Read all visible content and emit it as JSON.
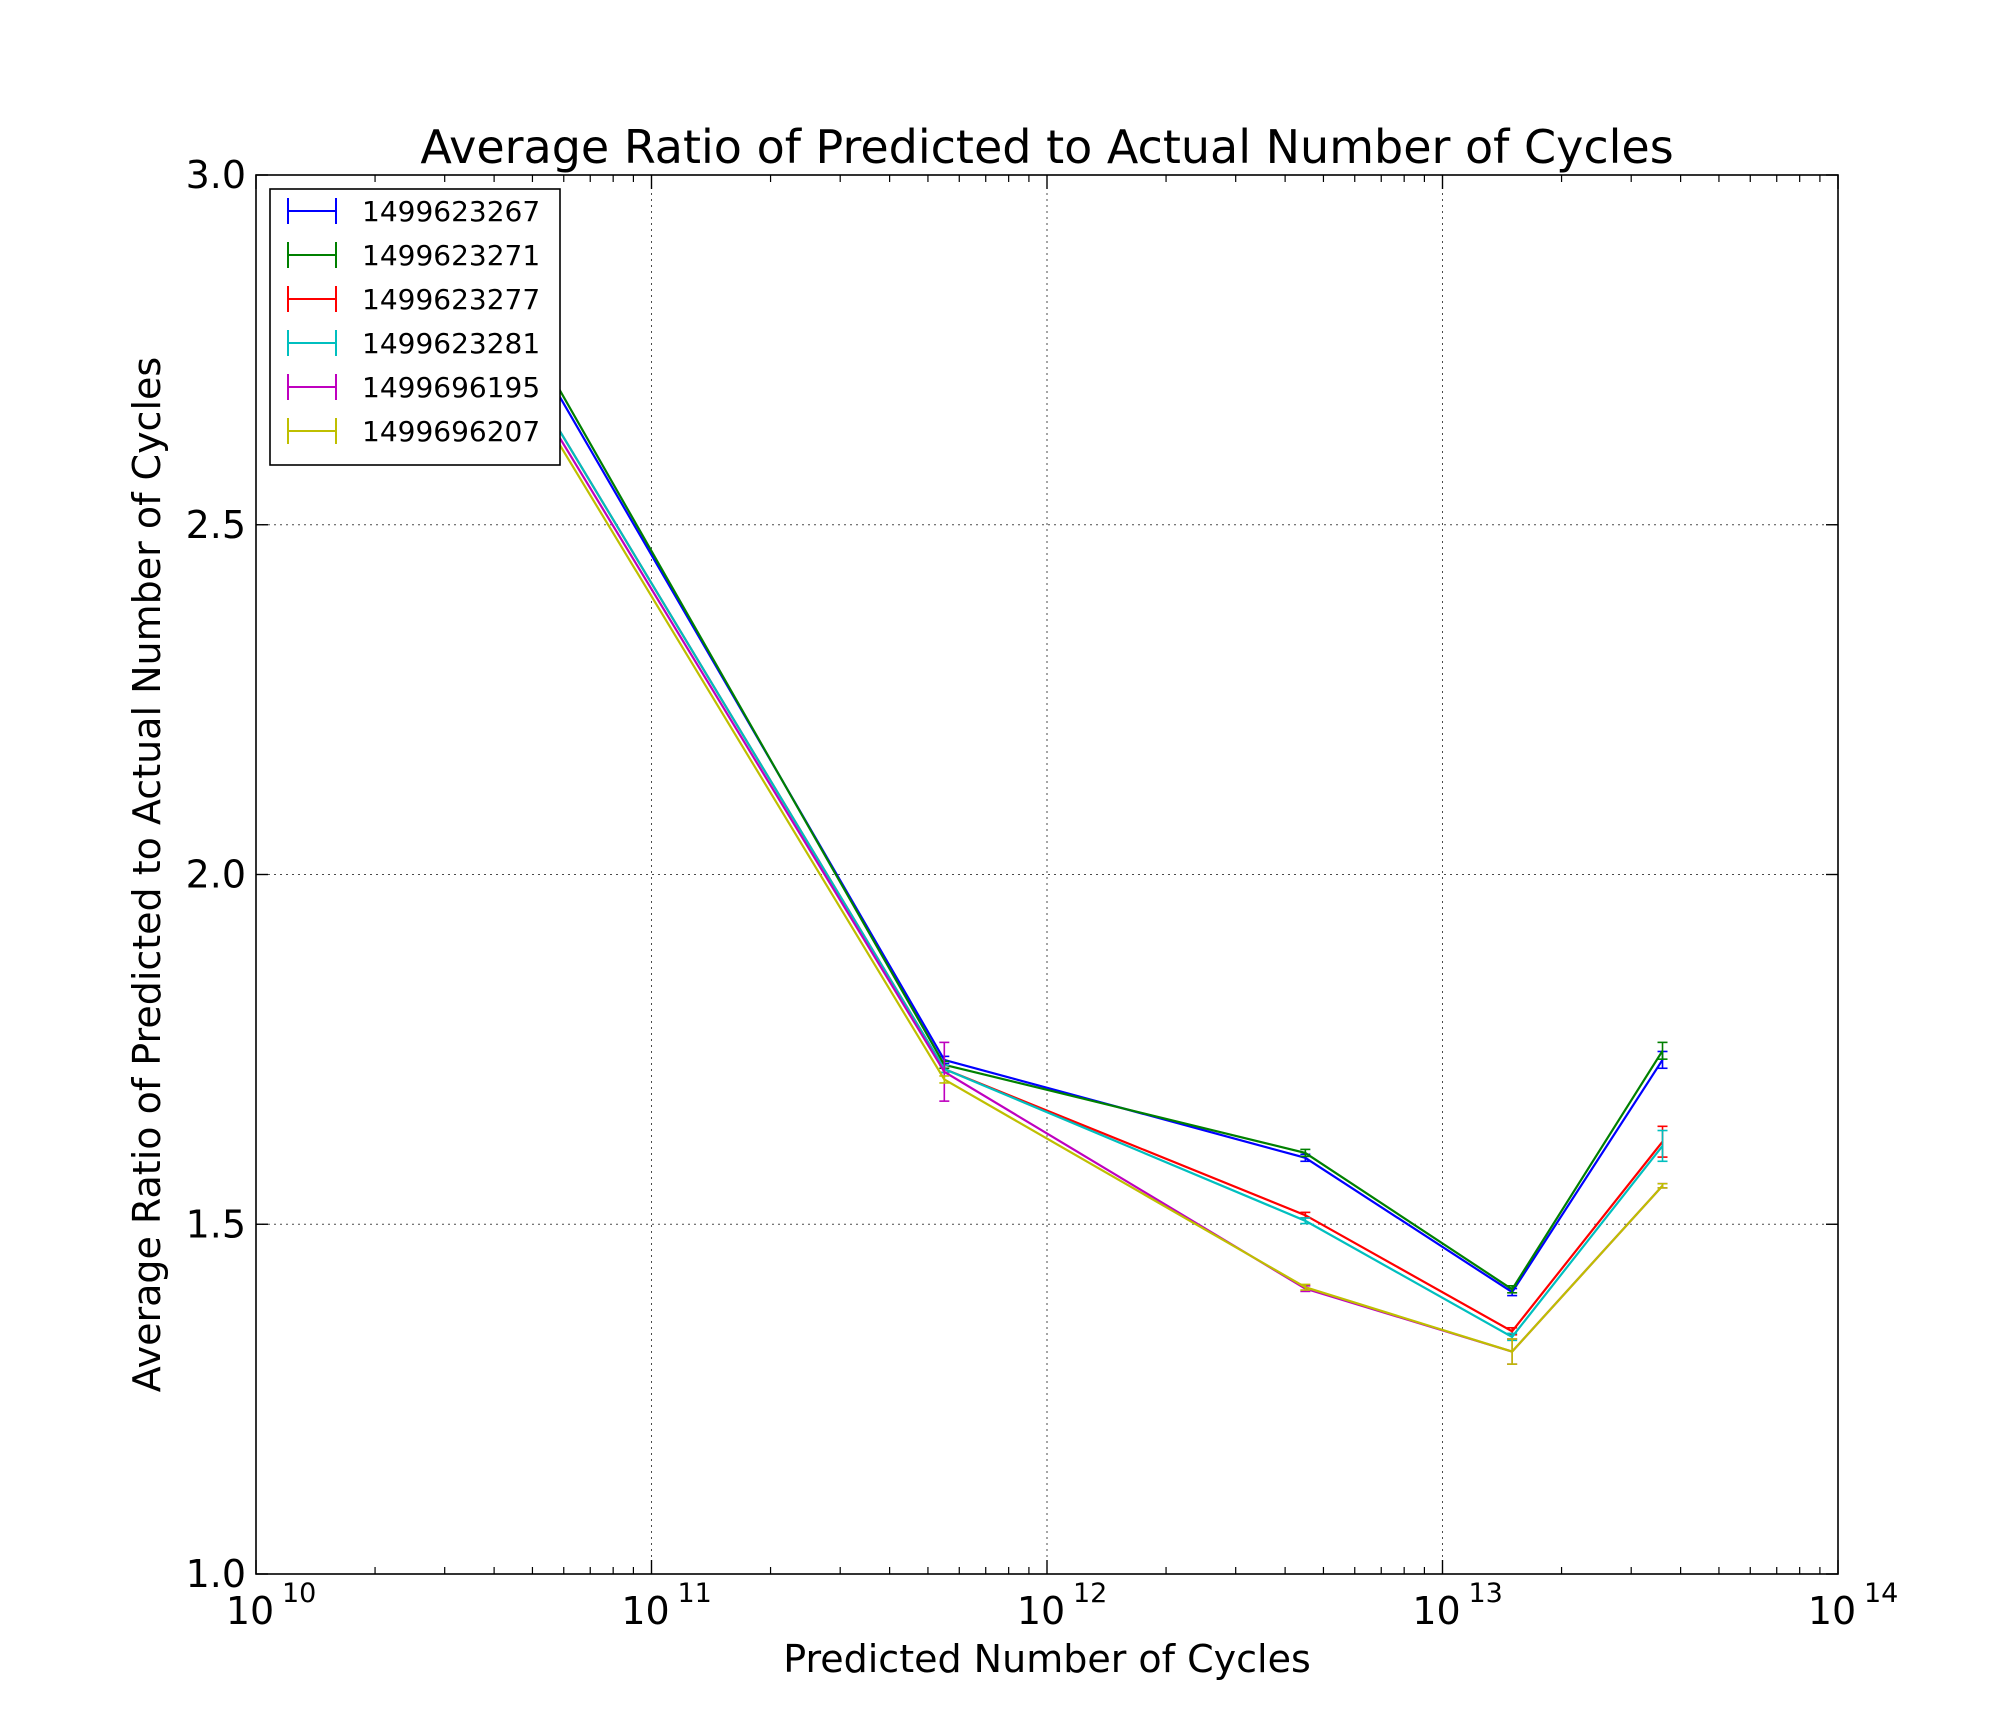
{
  "chart_data": {
    "type": "line",
    "title": "Average Ratio of Predicted to Actual Number of Cycles",
    "xlabel": "Predicted Number of Cycles",
    "ylabel": "Average Ratio of Predicted to Actual Number of Cycles",
    "xscale": "log",
    "xlim": [
      10000000000.0,
      100000000000000.0
    ],
    "ylim": [
      1.0,
      3.0
    ],
    "grid": true,
    "legend_position": "top-left",
    "x_ticks": [
      {
        "value": 10000000000.0,
        "base": "10",
        "exp": "10"
      },
      {
        "value": 100000000000.0,
        "base": "10",
        "exp": "11"
      },
      {
        "value": 1000000000000.0,
        "base": "10",
        "exp": "12"
      },
      {
        "value": 10000000000000.0,
        "base": "10",
        "exp": "13"
      },
      {
        "value": 100000000000000.0,
        "base": "10",
        "exp": "14"
      }
    ],
    "y_ticks": [
      {
        "value": 1.0,
        "label": "1.0"
      },
      {
        "value": 1.5,
        "label": "1.5"
      },
      {
        "value": 2.0,
        "label": "2.0"
      },
      {
        "value": 2.5,
        "label": "2.5"
      },
      {
        "value": 3.0,
        "label": "3.0"
      }
    ],
    "x": [
      55000000000.0,
      550000000000.0,
      4500000000000.0,
      15000000000000.0,
      36000000000000.0
    ],
    "series": [
      {
        "name": "1499623267",
        "color": "#0000ff",
        "y": [
          2.71,
          1.735,
          1.595,
          1.403,
          1.735
        ],
        "err": [
          0.0,
          0.005,
          0.005,
          0.005,
          0.012
        ]
      },
      {
        "name": "1499623271",
        "color": "#008000",
        "y": [
          2.72,
          1.728,
          1.602,
          1.407,
          1.748
        ],
        "err": [
          0.0,
          0.005,
          0.005,
          0.005,
          0.012
        ]
      },
      {
        "name": "1499623277",
        "color": "#ff0000",
        "y": [
          2.66,
          1.722,
          1.513,
          1.347,
          1.618
        ],
        "err": [
          0.0,
          0.005,
          0.004,
          0.005,
          0.022
        ]
      },
      {
        "name": "1499623281",
        "color": "#00bfbf",
        "y": [
          2.66,
          1.722,
          1.505,
          1.339,
          1.612
        ],
        "err": [
          0.0,
          0.005,
          0.004,
          0.005,
          0.022
        ]
      },
      {
        "name": "1499696195",
        "color": "#bf00bf",
        "y": [
          2.65,
          1.718,
          1.408,
          1.318,
          1.555
        ],
        "err": [
          0.0,
          0.042,
          0.004,
          0.018,
          0.003
        ]
      },
      {
        "name": "1499696207",
        "color": "#bfbf00",
        "y": [
          2.64,
          1.707,
          1.41,
          1.318,
          1.555
        ],
        "err": [
          0.0,
          0.005,
          0.004,
          0.018,
          0.003
        ]
      }
    ]
  }
}
